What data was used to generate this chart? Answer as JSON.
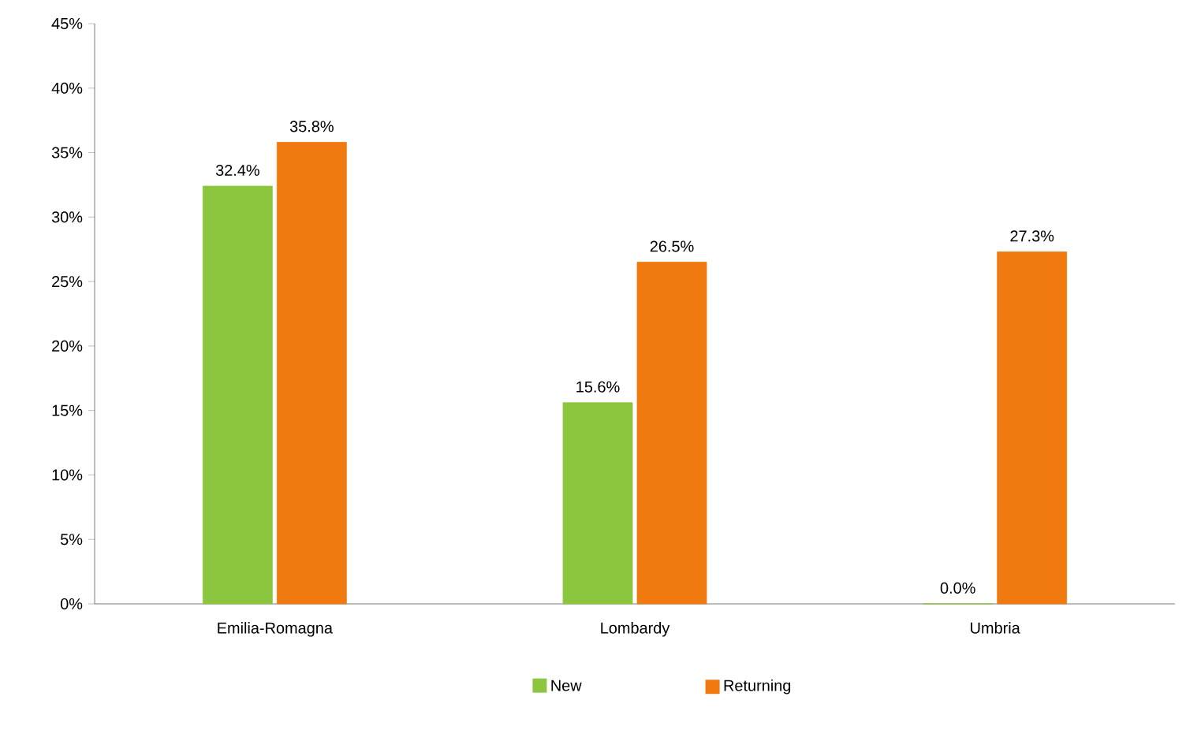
{
  "chart_data": {
    "type": "bar",
    "categories": [
      "Emilia-Romagna",
      "Lombardy",
      "Umbria"
    ],
    "series": [
      {
        "name": "New",
        "color": "#8cc63e",
        "values": [
          32.4,
          15.6,
          0.0
        ],
        "value_labels": [
          "32.4%",
          "15.6%",
          "0.0%"
        ]
      },
      {
        "name": "Returning",
        "color": "#f07a10",
        "values": [
          35.8,
          26.5,
          27.3
        ],
        "value_labels": [
          "35.8%",
          "26.5%",
          "27.3%"
        ]
      }
    ],
    "ylim": [
      0,
      45
    ],
    "yticks": [
      {
        "value": 0,
        "label": "0%"
      },
      {
        "value": 5,
        "label": "5%"
      },
      {
        "value": 10,
        "label": "10%"
      },
      {
        "value": 15,
        "label": "15%"
      },
      {
        "value": 20,
        "label": "20%"
      },
      {
        "value": 25,
        "label": "25%"
      },
      {
        "value": 30,
        "label": "30%"
      },
      {
        "value": 35,
        "label": "35%"
      },
      {
        "value": 40,
        "label": "40%"
      },
      {
        "value": 45,
        "label": "45%"
      }
    ],
    "grid": false,
    "legend": "bottom"
  }
}
